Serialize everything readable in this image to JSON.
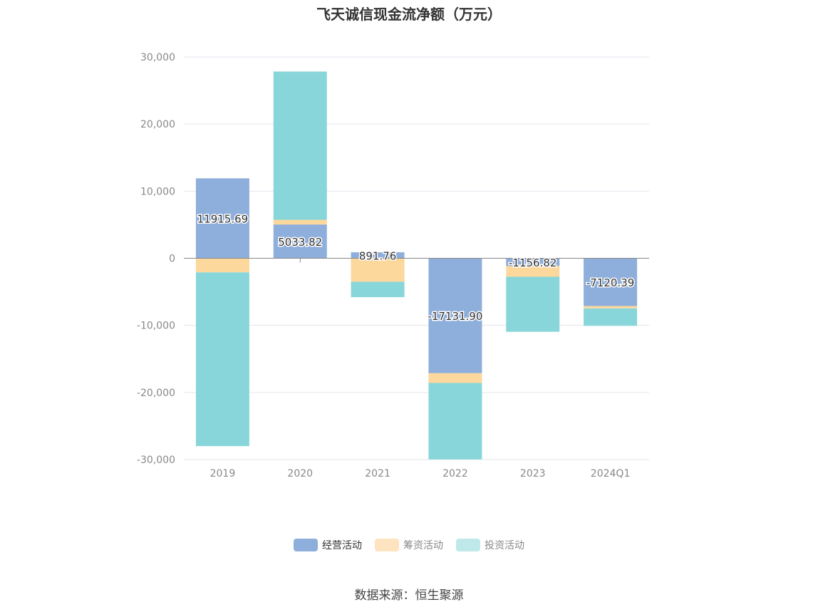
{
  "chart_data": {
    "type": "bar",
    "stacked": true,
    "title": "飞天诚信现金流净额（万元）",
    "categories": [
      "2019",
      "2020",
      "2021",
      "2022",
      "2023",
      "2024Q1"
    ],
    "ylim": [
      -30000,
      30000
    ],
    "yticks": [
      30000,
      20000,
      10000,
      0,
      -10000,
      -20000,
      -30000
    ],
    "ytick_labels": [
      "30,000",
      "20,000",
      "10,000",
      "0",
      "-10,000",
      "-20,000",
      "-30,000"
    ],
    "grid": true,
    "legend_position": "bottom",
    "series": [
      {
        "name": "经营活动",
        "color": "#8eaedb",
        "values": [
          11915.69,
          5033.82,
          891.76,
          -17131.9,
          -1156.82,
          -7120.39
        ],
        "labels": [
          "11915.69",
          "5033.82",
          "891.76",
          "-17131.90",
          "-1156.82",
          "-7120.39"
        ]
      },
      {
        "name": "筹资活动",
        "color": "#fdd89c",
        "values": [
          -2100,
          700,
          -3500,
          -1450,
          -1600,
          -350
        ]
      },
      {
        "name": "投资活动",
        "color": "#88d6d9",
        "values": [
          -25900,
          22100,
          -2300,
          -11400,
          -8200,
          -2600
        ]
      }
    ]
  },
  "legend": {
    "items": [
      {
        "label": "经营活动",
        "color": "#8eaedb"
      },
      {
        "label": "筹资活动",
        "color": "#fde3bf"
      },
      {
        "label": "投资活动",
        "color": "#bfe8ea"
      }
    ]
  },
  "source": "数据来源：恒生聚源"
}
